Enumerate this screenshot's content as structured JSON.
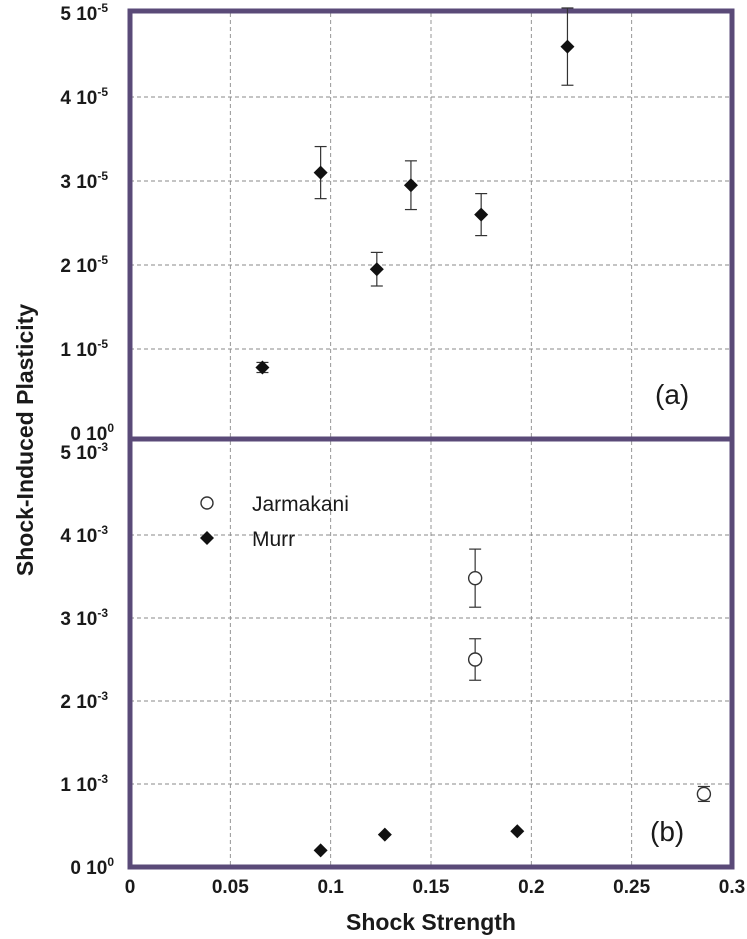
{
  "chart_data": [
    {
      "type": "scatter",
      "panel_label": "(a)",
      "ylabel": "Shock-Induced Plasticity",
      "xlim": [
        0,
        0.3
      ],
      "ylim": [
        0,
        5e-05
      ],
      "x_ticks": [
        "0",
        "0.05",
        "0.1",
        "0.15",
        "0.2",
        "0.25",
        "0.3"
      ],
      "y_ticks": [
        {
          "value": 0,
          "mant": "0 10",
          "exp": "0"
        },
        {
          "value": 1e-05,
          "mant": "1 10",
          "exp": "-5"
        },
        {
          "value": 2e-05,
          "mant": "2 10",
          "exp": "-5"
        },
        {
          "value": 3e-05,
          "mant": "3 10",
          "exp": "-5"
        },
        {
          "value": 4e-05,
          "mant": "4 10",
          "exp": "-5"
        },
        {
          "value": 5e-05,
          "mant": "5 10",
          "exp": "-5"
        }
      ],
      "grid": true,
      "series": [
        {
          "marker": "filled-diamond",
          "points": [
            {
              "x": 0.066,
              "y": 7.8e-06,
              "err": 6e-07
            },
            {
              "x": 0.095,
              "y": 3.1e-05,
              "err": 3.1e-06
            },
            {
              "x": 0.123,
              "y": 1.95e-05,
              "err": 2e-06
            },
            {
              "x": 0.14,
              "y": 2.95e-05,
              "err": 2.9e-06
            },
            {
              "x": 0.175,
              "y": 2.6e-05,
              "err": 2.5e-06
            },
            {
              "x": 0.218,
              "y": 4.6e-05,
              "err": 4.6e-06
            }
          ]
        }
      ]
    },
    {
      "type": "scatter",
      "panel_label": "(b)",
      "xlabel": "Shock Strength",
      "xlim": [
        0,
        0.3
      ],
      "ylim": [
        0,
        0.005
      ],
      "x_ticks": [
        "0",
        "0.05",
        "0.1",
        "0.15",
        "0.2",
        "0.25",
        "0.3"
      ],
      "y_ticks": [
        {
          "value": 0,
          "mant": "0 10",
          "exp": "0"
        },
        {
          "value": 0.001,
          "mant": "1 10",
          "exp": "-3"
        },
        {
          "value": 0.002,
          "mant": "2 10",
          "exp": "-3"
        },
        {
          "value": 0.003,
          "mant": "3 10",
          "exp": "-3"
        },
        {
          "value": 0.004,
          "mant": "4 10",
          "exp": "-3"
        },
        {
          "value": 0.005,
          "mant": "5 10",
          "exp": "-3"
        }
      ],
      "grid": true,
      "legend_placement": "top-left",
      "series": [
        {
          "name": "Jarmakani",
          "marker": "open-circle",
          "points": [
            {
              "x": 0.172,
              "y": 0.00348,
              "err": 0.00035
            },
            {
              "x": 0.172,
              "y": 0.0025,
              "err": 0.00025
            },
            {
              "x": 0.286,
              "y": 0.00088,
              "err": 9e-05
            }
          ]
        },
        {
          "name": "Murr",
          "marker": "filled-diamond",
          "points": [
            {
              "x": 0.095,
              "y": 0.0002,
              "err": 0
            },
            {
              "x": 0.127,
              "y": 0.00039,
              "err": 0
            },
            {
              "x": 0.193,
              "y": 0.00043,
              "err": 0
            }
          ]
        }
      ]
    }
  ]
}
